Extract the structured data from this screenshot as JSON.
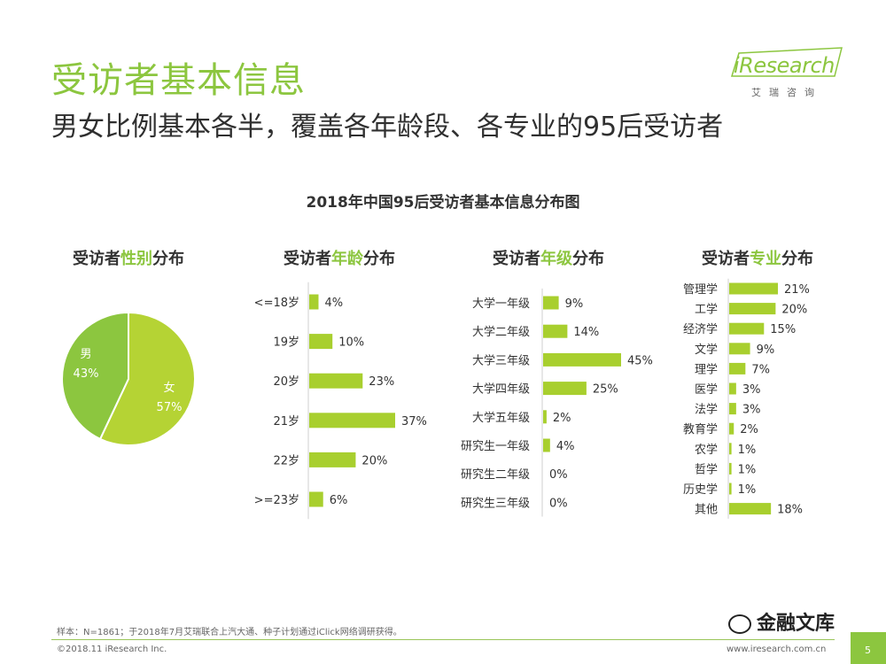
{
  "header": {
    "title": "受访者基本信息",
    "subtitle": "男女比例基本各半，覆盖各年龄段、各专业的95后受访者"
  },
  "logo": {
    "brand": "iResearch",
    "brand_cn": "艾瑞咨询"
  },
  "colors": {
    "accent": "#8cc63f",
    "pie_male": "#8cc63f",
    "pie_female": "#b5d334",
    "bar": "#a8cf2e"
  },
  "chart_data": {
    "title": "2018年中国95后受访者基本信息分布图",
    "panels": [
      {
        "type": "pie",
        "title_prefix": "受访者",
        "title_highlight": "性别",
        "title_suffix": "分布",
        "labels": [
          "男",
          "女"
        ],
        "values": [
          43,
          57
        ],
        "value_labels": [
          "43%",
          "57%"
        ]
      },
      {
        "type": "bar",
        "orientation": "horizontal",
        "title_prefix": "受访者",
        "title_highlight": "年龄",
        "title_suffix": "分布",
        "categories": [
          "<=18岁",
          "19岁",
          "20岁",
          "21岁",
          "22岁",
          ">=23岁"
        ],
        "values": [
          4,
          10,
          23,
          37,
          20,
          6
        ],
        "value_labels": [
          "4%",
          "10%",
          "23%",
          "37%",
          "20%",
          "6%"
        ]
      },
      {
        "type": "bar",
        "orientation": "horizontal",
        "title_prefix": "受访者",
        "title_highlight": "年级",
        "title_suffix": "分布",
        "categories": [
          "大学一年级",
          "大学二年级",
          "大学三年级",
          "大学四年级",
          "大学五年级",
          "研究生一年级",
          "研究生二年级",
          "研究生三年级"
        ],
        "values": [
          9,
          14,
          45,
          25,
          2,
          4,
          0,
          0
        ],
        "value_labels": [
          "9%",
          "14%",
          "45%",
          "25%",
          "2%",
          "4%",
          "0%",
          "0%"
        ]
      },
      {
        "type": "bar",
        "orientation": "horizontal",
        "title_prefix": "受访者",
        "title_highlight": "专业",
        "title_suffix": "分布",
        "categories": [
          "管理学",
          "工学",
          "经济学",
          "文学",
          "理学",
          "医学",
          "法学",
          "教育学",
          "农学",
          "哲学",
          "历史学",
          "其他"
        ],
        "values": [
          21,
          20,
          15,
          9,
          7,
          3,
          3,
          2,
          1,
          1,
          1,
          18
        ],
        "value_labels": [
          "21%",
          "20%",
          "15%",
          "9%",
          "7%",
          "3%",
          "3%",
          "2%",
          "1%",
          "1%",
          "1%",
          "18%"
        ]
      }
    ]
  },
  "footer": {
    "note": "样本：N=1861；于2018年7月艾瑞联合上汽大通、种子计划通过iClick网络调研获得。",
    "copyright": "©2018.11 iResearch Inc.",
    "website": "www.iresearch.com.cn",
    "page": "5",
    "watermark": "金融文库"
  }
}
